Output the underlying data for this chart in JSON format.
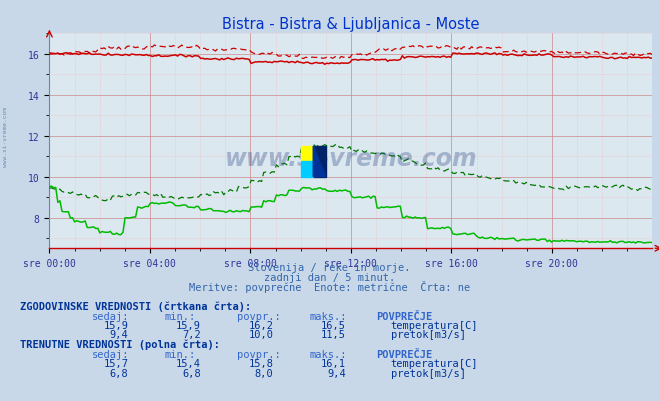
{
  "title": "Bistra - Bistra & Ljubljanica - Moste",
  "title_color": "#0033cc",
  "bg_color": "#c8d8e8",
  "plot_bg_color": "#dce8f0",
  "grid_color_minor": "#ffaaaa",
  "grid_color_major": "#cc8888",
  "xlabel_ticks": [
    "sre 00:00",
    "sre 04:00",
    "sre 08:00",
    "sre 12:00",
    "sre 16:00",
    "sre 20:00"
  ],
  "ylabel_min": 6.5,
  "ylabel_max": 17.0,
  "yticks": [
    8,
    10,
    12,
    14,
    16
  ],
  "subtitle_lines": [
    "Slovenija / reke in morje.",
    "zadnji dan / 5 minut.",
    "Meritve: povprečne  Enote: metrične  Črta: ne"
  ],
  "temp_color": "#cc0000",
  "flow_dashed_color": "#007700",
  "flow_solid_color": "#00bb00",
  "watermark_color": "#1a3a7a",
  "table_header_color": "#003399",
  "table_label_color": "#3366cc",
  "table_value_color": "#003399",
  "footnote_color": "#3366aa",
  "hist_temp_sedaj": 15.9,
  "hist_temp_min": 15.9,
  "hist_temp_povpr": 16.2,
  "hist_temp_maks": 16.5,
  "hist_flow_sedaj": 9.4,
  "hist_flow_min": 7.2,
  "hist_flow_povpr": 10.0,
  "hist_flow_maks": 11.5,
  "curr_temp_sedaj": 15.7,
  "curr_temp_min": 15.4,
  "curr_temp_povpr": 15.8,
  "curr_temp_maks": 16.1,
  "curr_flow_sedaj": 6.8,
  "curr_flow_min": 6.8,
  "curr_flow_povpr": 8.0,
  "curr_flow_maks": 9.4,
  "n_points": 288
}
